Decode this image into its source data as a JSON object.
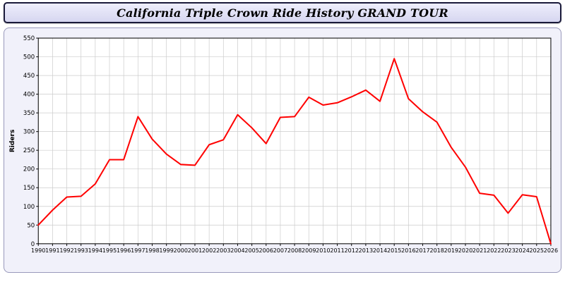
{
  "title_bar": {
    "title": "California Triple Crown Ride History GRAND TOUR"
  },
  "chart_data": {
    "type": "line",
    "title": "California Triple Crown Ride History GRAND TOUR",
    "xlabel": "",
    "ylabel": "Riders",
    "ylim": [
      0,
      550
    ],
    "ytick_step": 50,
    "grid": true,
    "legend_position": "none",
    "line_color": "#ff0000",
    "plot_background": "#ffffff",
    "panel_background": "#f1f1fa",
    "grid_color": "#cccccc",
    "categories": [
      1990,
      1991,
      1992,
      1993,
      1994,
      1995,
      1996,
      1997,
      1998,
      1999,
      2000,
      2001,
      2002,
      2003,
      2004,
      2005,
      2006,
      2007,
      2008,
      2009,
      2010,
      2011,
      2012,
      2013,
      2014,
      2015,
      2016,
      2017,
      2018,
      2019,
      2020,
      2021,
      2022,
      2023,
      2024,
      2025,
      2026
    ],
    "values": [
      50,
      90,
      125,
      127,
      160,
      225,
      225,
      340,
      280,
      240,
      212,
      210,
      265,
      278,
      345,
      310,
      268,
      338,
      340,
      392,
      371,
      377,
      393,
      411,
      381,
      495,
      388,
      353,
      325,
      258,
      205,
      135,
      130,
      82,
      131,
      126,
      0
    ]
  }
}
